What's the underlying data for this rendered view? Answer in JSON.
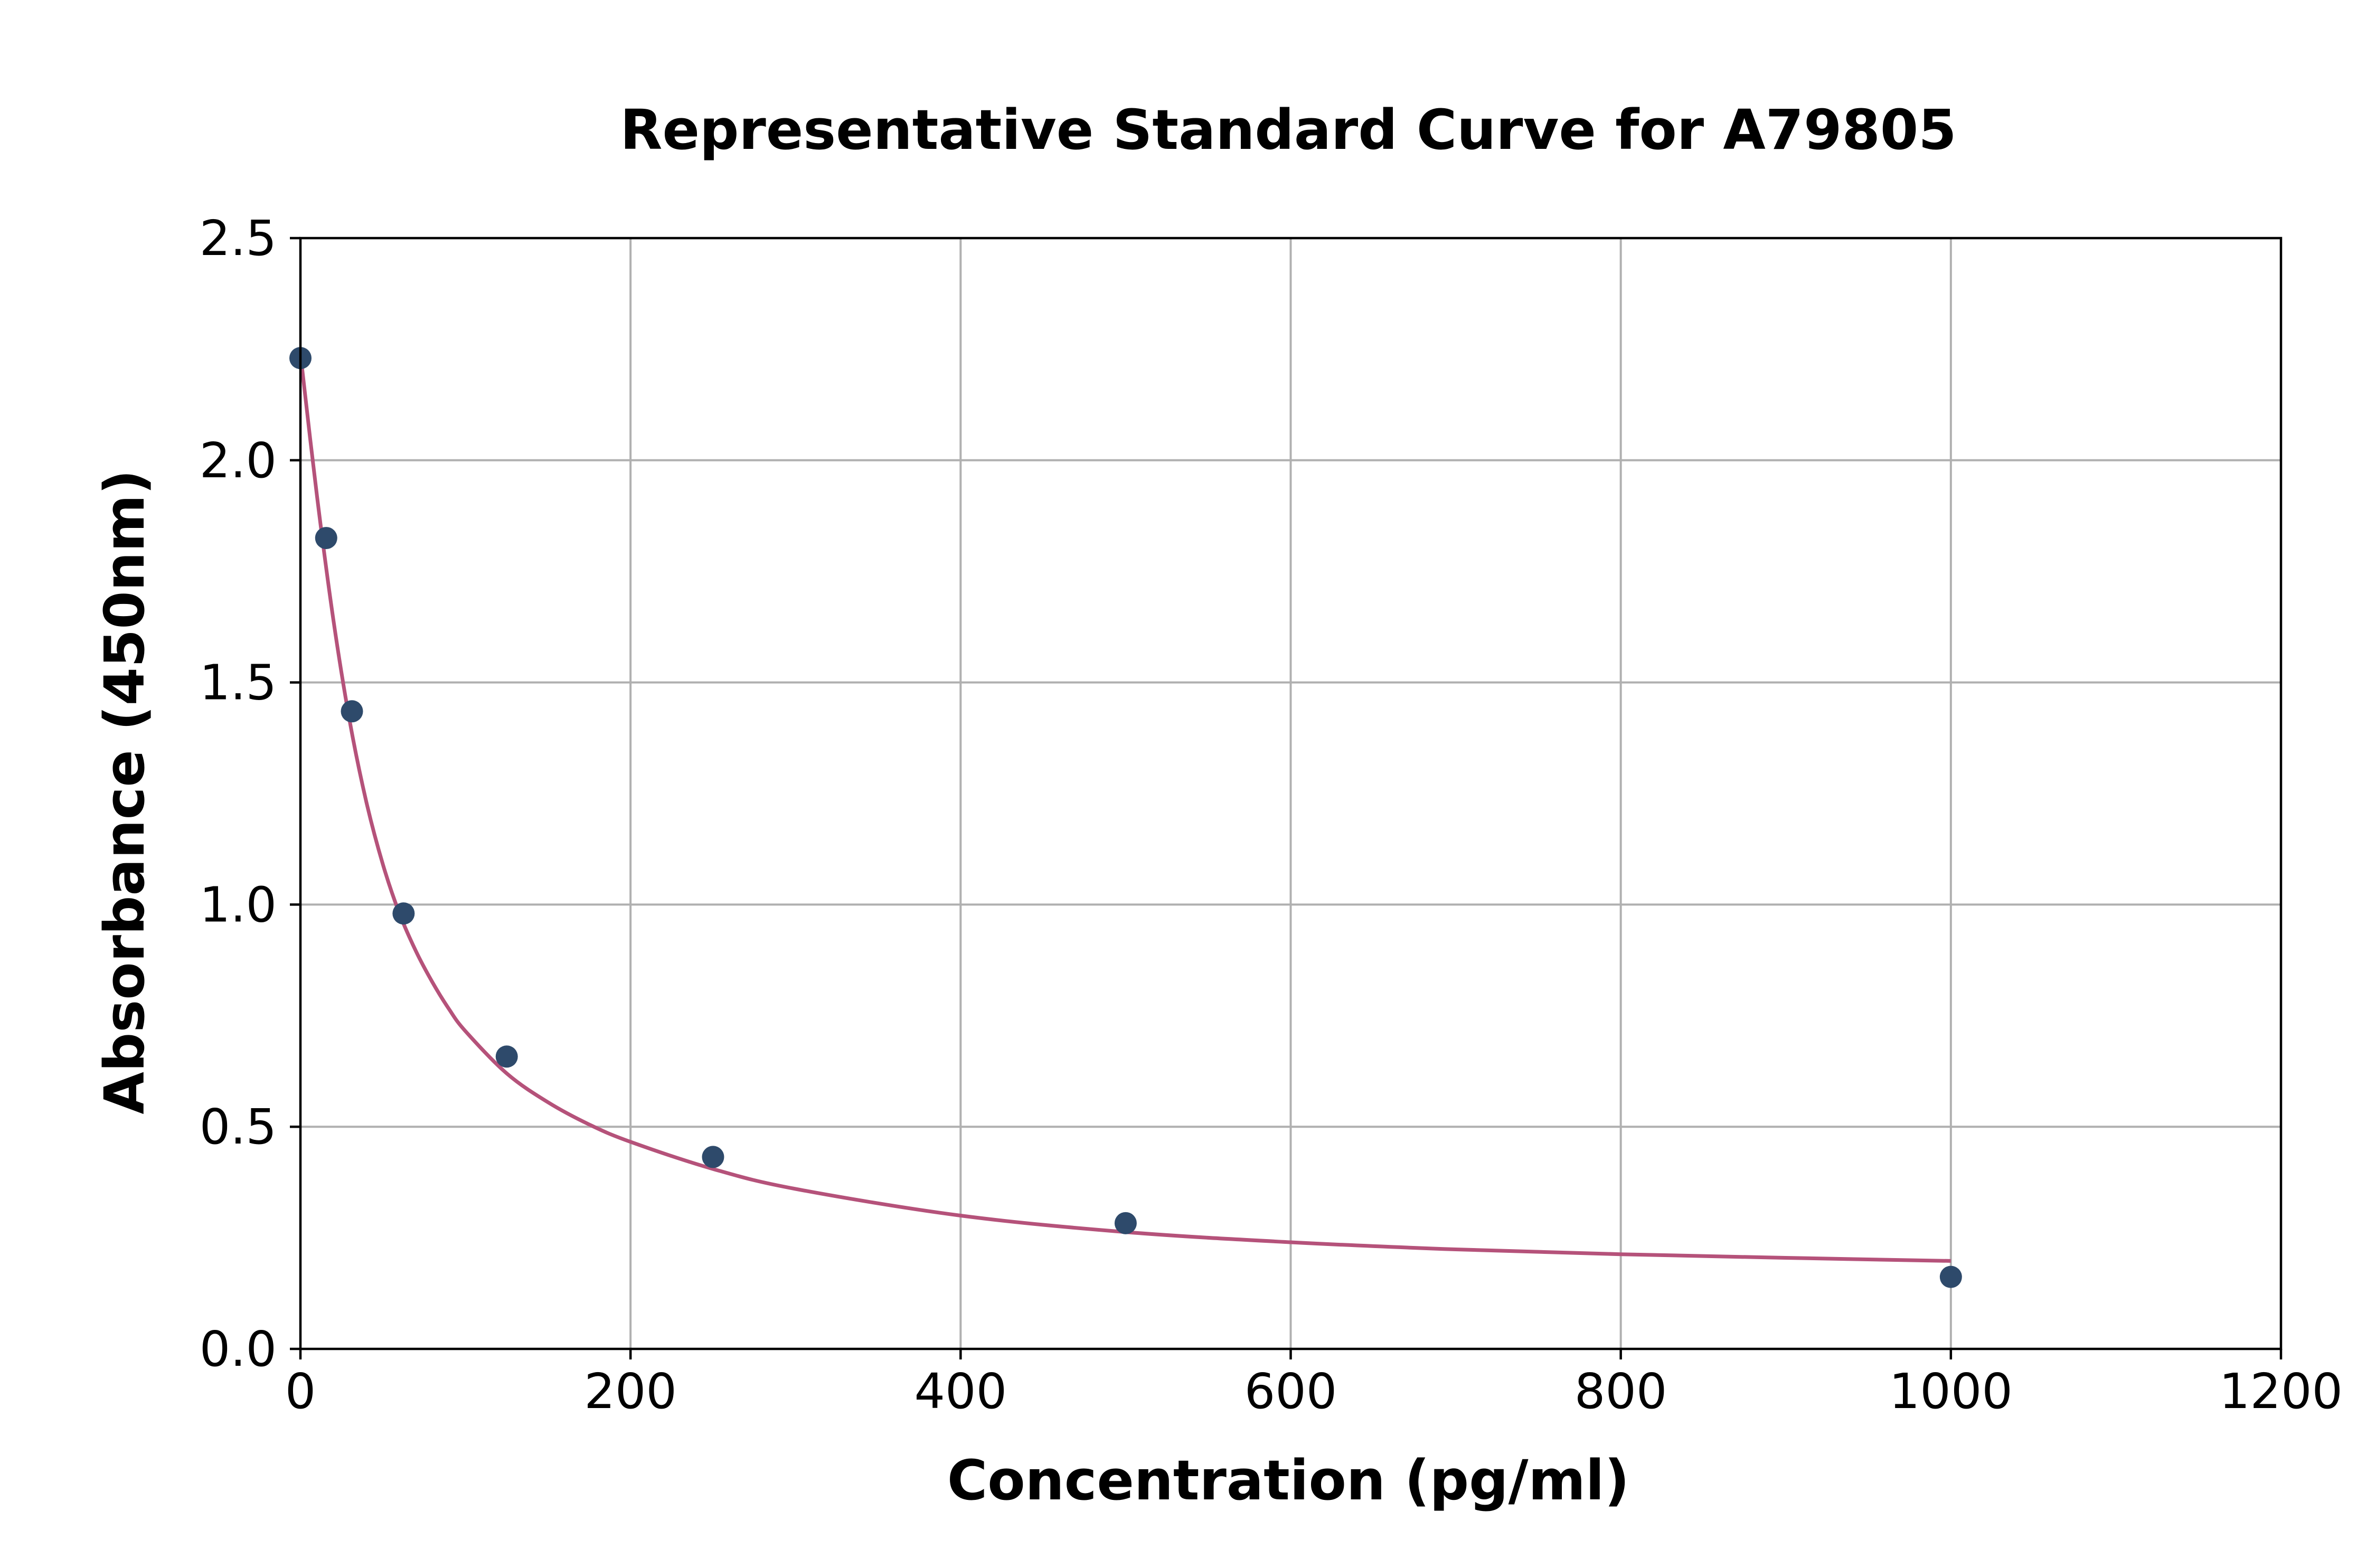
{
  "chart_data": {
    "type": "scatter",
    "title": "Representative Standard Curve for A79805",
    "xlabel": "Concentration (pg/ml)",
    "ylabel": "Absorbance (450nm)",
    "xlim": [
      0,
      1200
    ],
    "ylim": [
      0,
      2.5
    ],
    "x_ticks": [
      "0",
      "200",
      "400",
      "600",
      "800",
      "1000",
      "1200"
    ],
    "y_ticks": [
      "0.0",
      "0.5",
      "1.0",
      "1.5",
      "2.0",
      "2.5"
    ],
    "grid": true,
    "series": [
      {
        "kind": "points",
        "x": [
          0,
          15.6,
          31.2,
          62.5,
          125,
          250,
          500,
          1000
        ],
        "y": [
          2.23,
          1.825,
          1.435,
          0.98,
          0.658,
          0.432,
          0.283,
          0.162
        ]
      },
      {
        "kind": "fitted-curve",
        "x": [
          0,
          10,
          20,
          30,
          40,
          50,
          60,
          70,
          80,
          90,
          100,
          125,
          150,
          175,
          200,
          250,
          300,
          400,
          500,
          600,
          700,
          800,
          900,
          1000
        ],
        "y": [
          2.24,
          1.92,
          1.64,
          1.41,
          1.23,
          1.09,
          0.98,
          0.895,
          0.825,
          0.765,
          0.715,
          0.62,
          0.555,
          0.505,
          0.466,
          0.405,
          0.36,
          0.3,
          0.263,
          0.24,
          0.224,
          0.213,
          0.205,
          0.198
        ]
      }
    ],
    "colors": {
      "points": "#2e4a6b",
      "curve": "#b5527a",
      "grid": "#b0b0b0",
      "axes": "#000000"
    }
  }
}
